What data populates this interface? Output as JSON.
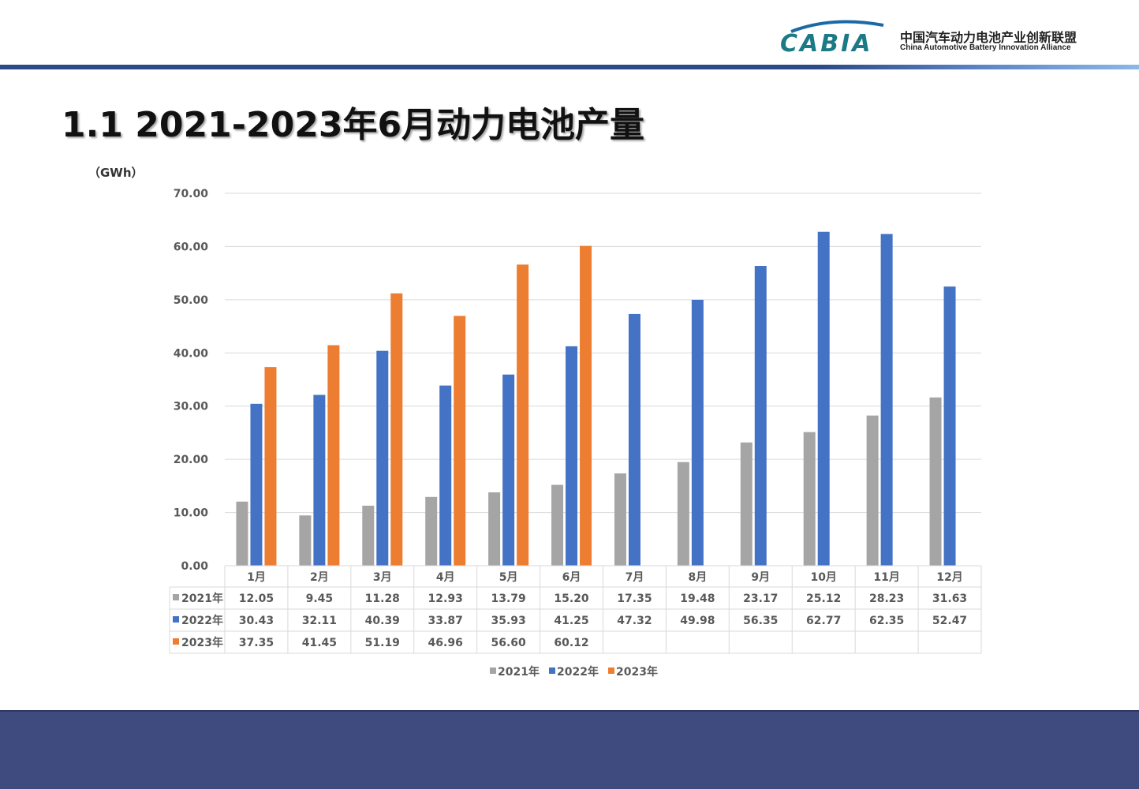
{
  "header": {
    "logo_text": "CABIA",
    "org_cn": "中国汽车动力电池产业创新联盟",
    "org_en": "China Automotive Battery Innovation Alliance"
  },
  "page": {
    "title": "1.1 2021-2023年6月动力电池产量",
    "unit": "（GWh）"
  },
  "colors": {
    "s2021": "#a5a5a5",
    "s2022": "#4472c4",
    "s2023": "#ed7d31",
    "footer": "#3f4b7f"
  },
  "chart_data": {
    "type": "bar",
    "categories": [
      "1月",
      "2月",
      "3月",
      "4月",
      "5月",
      "6月",
      "7月",
      "8月",
      "9月",
      "10月",
      "11月",
      "12月"
    ],
    "series": [
      {
        "name": "2021年",
        "values": [
          12.05,
          9.45,
          11.28,
          12.93,
          13.79,
          15.2,
          17.35,
          19.48,
          23.17,
          25.12,
          28.23,
          31.63
        ]
      },
      {
        "name": "2022年",
        "values": [
          30.43,
          32.11,
          40.39,
          33.87,
          35.93,
          41.25,
          47.32,
          49.98,
          56.35,
          62.77,
          62.35,
          52.47
        ]
      },
      {
        "name": "2023年",
        "values": [
          37.35,
          41.45,
          51.19,
          46.96,
          56.6,
          60.12,
          null,
          null,
          null,
          null,
          null,
          null
        ]
      }
    ],
    "ylim": [
      0,
      70
    ],
    "yticks": [
      "0.00",
      "10.00",
      "20.00",
      "30.00",
      "40.00",
      "50.00",
      "60.00",
      "70.00"
    ],
    "table": [
      {
        "label": "2021年",
        "cells": [
          "12.05",
          "9.45",
          "11.28",
          "12.93",
          "13.79",
          "15.20",
          "17.35",
          "19.48",
          "23.17",
          "25.12",
          "28.23",
          "31.63"
        ]
      },
      {
        "label": "2022年",
        "cells": [
          "30.43",
          "32.11",
          "40.39",
          "33.87",
          "35.93",
          "41.25",
          "47.32",
          "49.98",
          "56.35",
          "62.77",
          "62.35",
          "52.47"
        ]
      },
      {
        "label": "2023年",
        "cells": [
          "37.35",
          "41.45",
          "51.19",
          "46.96",
          "56.60",
          "60.12",
          "",
          "",
          "",
          "",
          "",
          ""
        ]
      }
    ],
    "legend": [
      "2021年",
      "2022年",
      "2023年"
    ],
    "legend_position": "bottom",
    "grid": true
  }
}
